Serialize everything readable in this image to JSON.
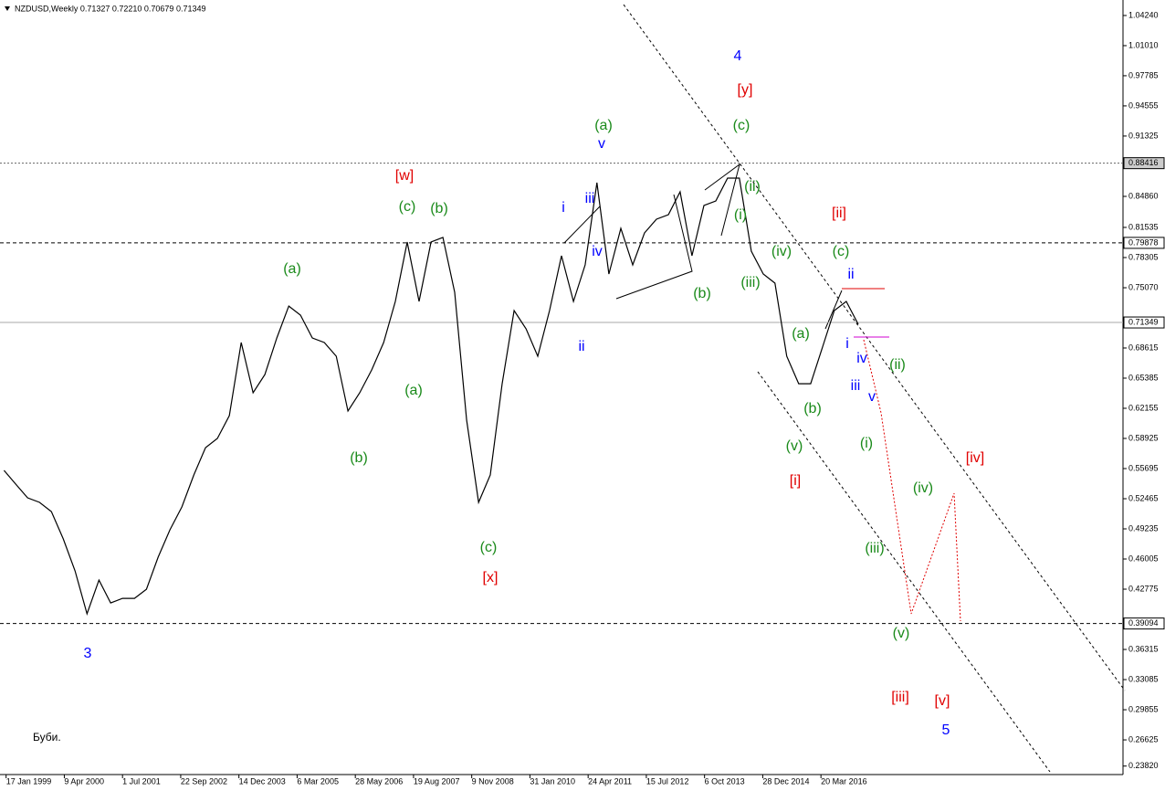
{
  "chart_data": {
    "type": "line",
    "title": "NZDUSD,Weekly  0.71327 0.72210 0.70679 0.71349",
    "note": "Буби.",
    "x": [
      "1999-01",
      "1999-04",
      "1999-07",
      "1999-10",
      "2000-01",
      "2000-04",
      "2000-07",
      "2000-10",
      "2001-01",
      "2001-04",
      "2001-07",
      "2001-10",
      "2002-01",
      "2002-04",
      "2002-07",
      "2002-10",
      "2003-01",
      "2003-04",
      "2003-07",
      "2003-10",
      "2004-01",
      "2004-04",
      "2004-07",
      "2004-10",
      "2005-01",
      "2005-04",
      "2005-07",
      "2005-10",
      "2006-01",
      "2006-04",
      "2006-07",
      "2006-10",
      "2007-01",
      "2007-04",
      "2007-07",
      "2007-10",
      "2008-01",
      "2008-04",
      "2008-07",
      "2008-10",
      "2009-01",
      "2009-04",
      "2009-07",
      "2009-10",
      "2010-01",
      "2010-04",
      "2010-07",
      "2010-10",
      "2011-01",
      "2011-04",
      "2011-07",
      "2011-10",
      "2012-01",
      "2012-04",
      "2012-07",
      "2012-10",
      "2013-01",
      "2013-04",
      "2013-07",
      "2013-10",
      "2014-01",
      "2014-04",
      "2014-07",
      "2014-10",
      "2015-01",
      "2015-04",
      "2015-07",
      "2015-10",
      "2016-01",
      "2016-04",
      "2016-07",
      "2016-10",
      "2017-01"
    ],
    "series": [
      {
        "name": "NZDUSD",
        "color": "#000000",
        "values": [
          0.555,
          0.5403,
          0.5256,
          0.5207,
          0.5109,
          0.4816,
          0.4473,
          0.4013,
          0.4375,
          0.413,
          0.4179,
          0.4179,
          0.4277,
          0.462,
          0.4913,
          0.5158,
          0.5501,
          0.5794,
          0.5892,
          0.6137,
          0.692,
          0.6382,
          0.6577,
          0.6969,
          0.7311,
          0.7214,
          0.6969,
          0.692,
          0.6773,
          0.6186,
          0.6382,
          0.6626,
          0.692,
          0.736,
          0.7997,
          0.736,
          0.7997,
          0.8046,
          0.7458,
          0.6088,
          0.5207,
          0.5501,
          0.6479,
          0.7263,
          0.7067,
          0.6773,
          0.7263,
          0.785,
          0.736,
          0.7752,
          0.8633,
          0.7654,
          0.8143,
          0.7752,
          0.8094,
          0.8241,
          0.829,
          0.8535,
          0.785,
          0.8388,
          0.8437,
          0.8682,
          0.8682,
          0.7899,
          0.7654,
          0.7556,
          0.6773,
          0.6479,
          0.6479,
          0.6871,
          0.7263,
          0.736,
          0.7116
        ]
      }
    ],
    "xlim": [
      "1998-12-01",
      "2022-08-01"
    ],
    "ylim": [
      0.2291,
      1.059
    ],
    "xticks": [
      {
        "value": "1999-01-17",
        "label": "17 Jan 1999"
      },
      {
        "value": "2000-04-09",
        "label": "9 Apr 2000"
      },
      {
        "value": "2001-07-01",
        "label": "1 Jul 2001"
      },
      {
        "value": "2002-09-22",
        "label": "22 Sep 2002"
      },
      {
        "value": "2003-12-14",
        "label": "14 Dec 2003"
      },
      {
        "value": "2005-03-06",
        "label": "6 Mar 2005"
      },
      {
        "value": "2006-05-28",
        "label": "28 May 2006"
      },
      {
        "value": "2007-08-19",
        "label": "19 Aug 2007"
      },
      {
        "value": "2008-11-09",
        "label": "9 Nov 2008"
      },
      {
        "value": "2010-01-31",
        "label": "31 Jan 2010"
      },
      {
        "value": "2011-04-24",
        "label": "24 Apr 2011"
      },
      {
        "value": "2012-07-15",
        "label": "15 Jul 2012"
      },
      {
        "value": "2013-10-06",
        "label": "6 Oct 2013"
      },
      {
        "value": "2014-12-28",
        "label": "28 Dec 2014"
      },
      {
        "value": "2016-03-20",
        "label": "20 Mar 2016"
      }
    ],
    "yticks": [
      {
        "value": 1.0424,
        "label": "1.04240"
      },
      {
        "value": 1.0101,
        "label": "1.01010"
      },
      {
        "value": 0.97785,
        "label": "0.97785"
      },
      {
        "value": 0.94555,
        "label": "0.94555"
      },
      {
        "value": 0.91325,
        "label": "0.91325"
      },
      {
        "value": 0.8486,
        "label": "0.84860"
      },
      {
        "value": 0.81535,
        "label": "0.81535"
      },
      {
        "value": 0.78305,
        "label": "0.78305"
      },
      {
        "value": 0.7507,
        "label": "0.75070"
      },
      {
        "value": 0.68615,
        "label": "0.68615"
      },
      {
        "value": 0.65385,
        "label": "0.65385"
      },
      {
        "value": 0.62155,
        "label": "0.62155"
      },
      {
        "value": 0.58925,
        "label": "0.58925"
      },
      {
        "value": 0.55695,
        "label": "0.55695"
      },
      {
        "value": 0.52465,
        "label": "0.52465"
      },
      {
        "value": 0.49235,
        "label": "0.49235"
      },
      {
        "value": 0.46005,
        "label": "0.46005"
      },
      {
        "value": 0.42775,
        "label": "0.42775"
      },
      {
        "value": 0.36315,
        "label": "0.36315"
      },
      {
        "value": 0.33085,
        "label": "0.33085"
      },
      {
        "value": 0.29855,
        "label": "0.29855"
      },
      {
        "value": 0.26625,
        "label": "0.26625"
      },
      {
        "value": 0.2382,
        "label": "0.23820"
      }
    ],
    "levels": [
      0.88416,
      0.79878,
      0.71349,
      0.39094
    ],
    "annotations": [
      {
        "text": "4",
        "color": "#0000ff"
      },
      {
        "text": "[y]",
        "color": "#e00000"
      },
      {
        "text": "(c)",
        "color": "#1a8a1a"
      },
      {
        "text": "(a)",
        "color": "#1a8a1a"
      },
      {
        "text": "v",
        "color": "#0000ff"
      },
      {
        "text": "[w]",
        "color": "#e00000"
      },
      {
        "text": "(c)",
        "color": "#1a8a1a"
      },
      {
        "text": "(b)",
        "color": "#1a8a1a"
      },
      {
        "text": "i",
        "color": "#0000ff"
      },
      {
        "text": "iii",
        "color": "#0000ff"
      },
      {
        "text": "iv",
        "color": "#0000ff"
      },
      {
        "text": "ii",
        "color": "#0000ff"
      },
      {
        "text": "(a)",
        "color": "#1a8a1a"
      },
      {
        "text": "(a)",
        "color": "#1a8a1a"
      },
      {
        "text": "(b)",
        "color": "#1a8a1a"
      },
      {
        "text": "(c)",
        "color": "#1a8a1a"
      },
      {
        "text": "[x]",
        "color": "#e00000"
      },
      {
        "text": "3",
        "color": "#0000ff"
      },
      {
        "text": "(ii)",
        "color": "#1a8a1a"
      },
      {
        "text": "(i)",
        "color": "#1a8a1a"
      },
      {
        "text": "(iii)",
        "color": "#1a8a1a"
      },
      {
        "text": "(iv)",
        "color": "#1a8a1a"
      },
      {
        "text": "(b)",
        "color": "#1a8a1a"
      },
      {
        "text": "[ii]",
        "color": "#e00000"
      },
      {
        "text": "(c)",
        "color": "#1a8a1a"
      },
      {
        "text": "ii",
        "color": "#0000ff"
      },
      {
        "text": "(a)",
        "color": "#1a8a1a"
      },
      {
        "text": "(b)",
        "color": "#1a8a1a"
      },
      {
        "text": "(v)",
        "color": "#1a8a1a"
      },
      {
        "text": "[i]",
        "color": "#e00000"
      },
      {
        "text": "i",
        "color": "#0000ff"
      },
      {
        "text": "iv",
        "color": "#0000ff"
      },
      {
        "text": "(ii)",
        "color": "#1a8a1a"
      },
      {
        "text": "iii",
        "color": "#0000ff"
      },
      {
        "text": "v",
        "color": "#0000ff"
      },
      {
        "text": "(i)",
        "color": "#1a8a1a"
      },
      {
        "text": "(iv)",
        "color": "#1a8a1a"
      },
      {
        "text": "(iii)",
        "color": "#1a8a1a"
      },
      {
        "text": "(v)",
        "color": "#1a8a1a"
      },
      {
        "text": "[iv]",
        "color": "#e00000"
      },
      {
        "text": "[iii]",
        "color": "#e00000"
      },
      {
        "text": "[v]",
        "color": "#e00000"
      },
      {
        "text": "5",
        "color": "#0000ff"
      }
    ]
  }
}
